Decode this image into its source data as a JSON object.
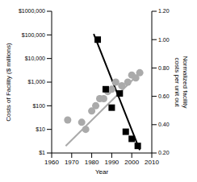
{
  "chart_data": {
    "type": "scatter",
    "x_label": "Year",
    "y_label": "Costs of Facility ($ millions)",
    "y2_label": "Normalized facility costs per unit out",
    "xlim": [
      1960,
      2010
    ],
    "xticks": [
      1960,
      1970,
      1980,
      1990,
      2000,
      2010
    ],
    "log": "y",
    "ylim": [
      1,
      1000000
    ],
    "yticks": [
      {
        "value": 1,
        "label": "$1"
      },
      {
        "value": 10,
        "label": "$10"
      },
      {
        "value": 100,
        "label": "$100"
      },
      {
        "value": 1000,
        "label": "$1,000"
      },
      {
        "value": 10000,
        "label": "$10,000"
      },
      {
        "value": 100000,
        "label": "$100,000"
      },
      {
        "value": 1000000,
        "label": "$1000,000"
      }
    ],
    "y2lim": [
      0.2,
      1.2
    ],
    "y2ticks": [
      {
        "value": 0.2,
        "label": "0.20"
      },
      {
        "value": 0.4,
        "label": "0.40"
      },
      {
        "value": 0.6,
        "label": "0.60"
      },
      {
        "value": 0.8,
        "label": "0.80"
      },
      {
        "value": 1.0,
        "label": "1.00"
      },
      {
        "value": 1.2,
        "label": "1.20"
      }
    ],
    "grid": false,
    "series": [
      {
        "type": "scatter",
        "color": "#aaaaaa",
        "marker": "circle",
        "x": [
          1968,
          1975,
          1977,
          1980,
          1982,
          1984,
          1986,
          1988,
          1990,
          1992,
          1995,
          1998,
          2000,
          2002,
          2004
        ],
        "values": [
          25,
          20,
          10,
          60,
          100,
          200,
          200,
          400,
          500,
          1000,
          700,
          1000,
          2000,
          1500,
          2500
        ]
      },
      {
        "type": "line",
        "color": "#aaaaaa",
        "x": [
          1967,
          2005
        ],
        "values": [
          2,
          3000
        ]
      },
      {
        "type": "scatter",
        "color": "#000000",
        "marker": "square",
        "axis": "y2",
        "x": [
          1983,
          1987,
          1990,
          1994,
          1997,
          2000,
          2003
        ],
        "values": [
          1.0,
          0.65,
          0.52,
          0.62,
          0.35,
          0.3,
          0.25
        ]
      },
      {
        "type": "line",
        "color": "#000000",
        "axis": "y2",
        "x": [
          1981,
          2004
        ],
        "values": [
          1.04,
          0.22
        ]
      }
    ]
  }
}
